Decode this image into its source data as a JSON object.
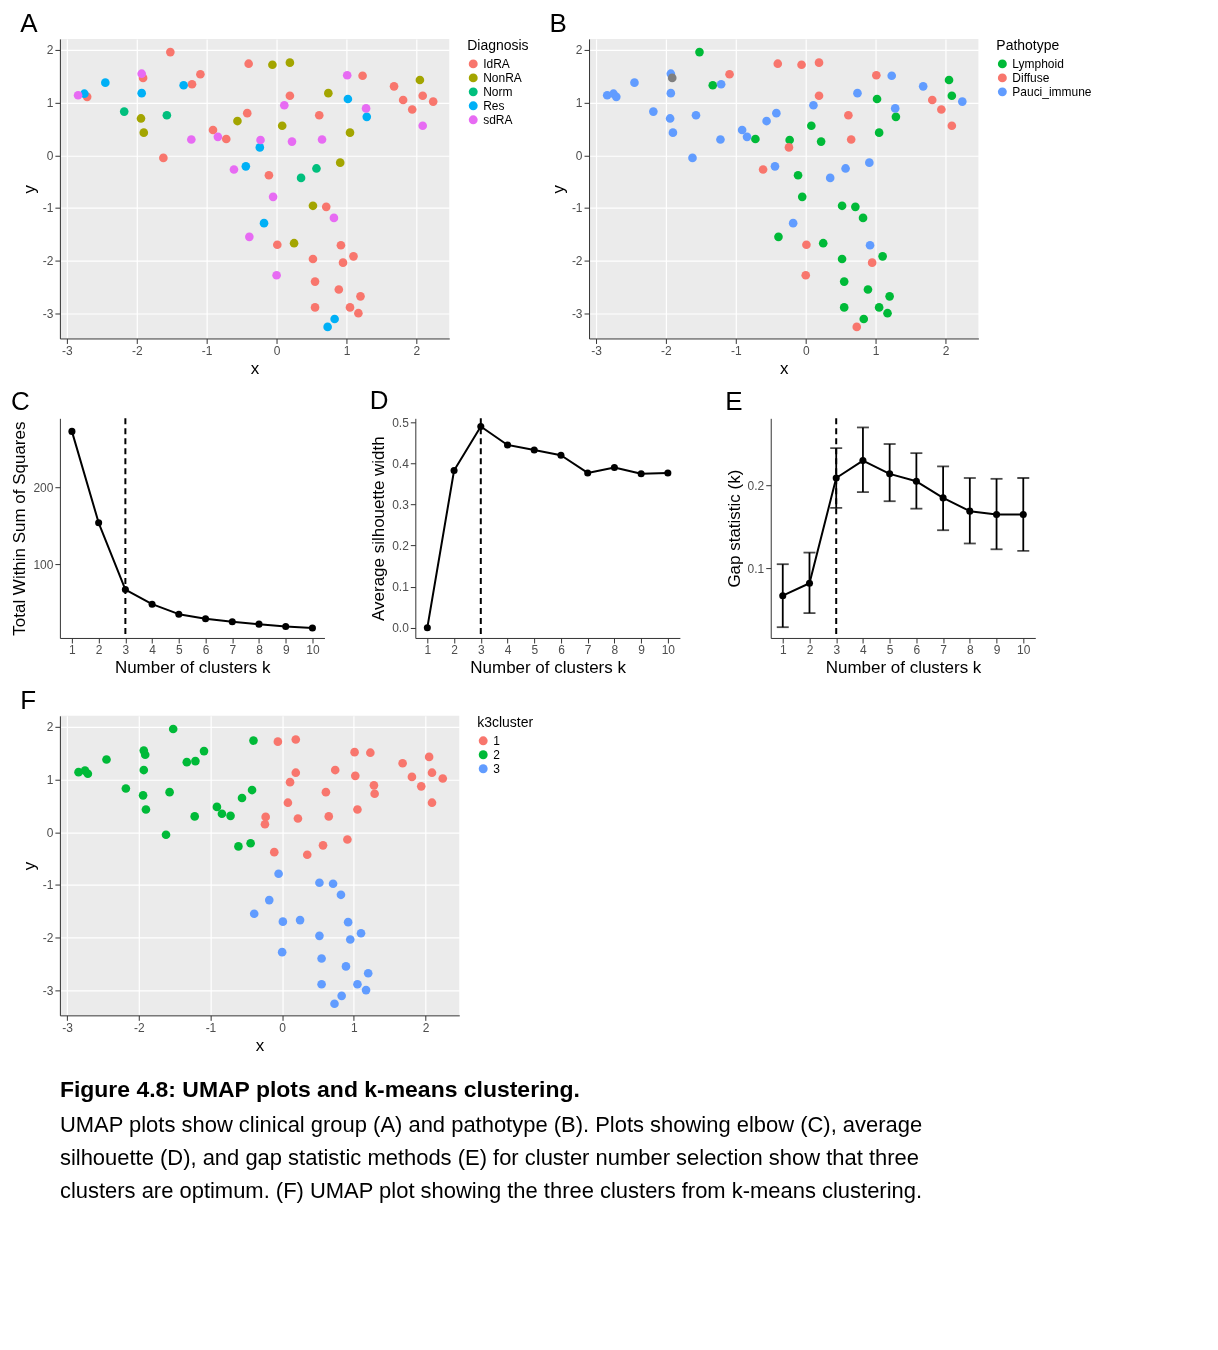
{
  "chart_data": [
    {
      "type": "scatter",
      "title": "A",
      "xlabel": "x",
      "ylabel": "y",
      "legend_title": "Diagnosis",
      "legend": "right",
      "grid": true,
      "marker": "circle",
      "xlim": [
        -3.1,
        2.47
      ],
      "ylim": [
        -3.48,
        2.21
      ],
      "xticks": [
        -3,
        -2,
        -1,
        0,
        1,
        2
      ],
      "yticks": [
        -3,
        -2,
        -1,
        0,
        1,
        2
      ],
      "series": [
        {
          "name": "IdRA",
          "color": "#f8766d",
          "x": [
            -1.52,
            -0.4,
            -1.91,
            -1.09,
            -1.21,
            -2.71,
            -1.62,
            -0.91,
            -0.72,
            -0.42,
            -0.11,
            0.01,
            0.19,
            0.61,
            0.71,
            0.92,
            1.1,
            0.95,
            0.52,
            0.55,
            0.89,
            1.2,
            0.55,
            1.05,
            1.17,
            1.23,
            1.68,
            1.81,
            1.94,
            2.09,
            2.24
          ],
          "values": [
            1.96,
            1.74,
            1.47,
            1.54,
            1.35,
            1.11,
            -0.05,
            0.48,
            0.31,
            0.8,
            -0.38,
            -1.7,
            1.13,
            0.76,
            -0.98,
            -1.71,
            -1.92,
            -2.04,
            -1.97,
            -2.4,
            -2.55,
            -2.68,
            -2.89,
            -2.89,
            -3.0,
            1.51,
            1.31,
            1.05,
            0.87,
            1.13,
            1.02
          ]
        },
        {
          "name": "NonRA",
          "color": "#a3a500",
          "x": [
            -0.06,
            0.19,
            -1.94,
            -1.9,
            -0.56,
            0.25,
            0.08,
            0.74,
            0.91,
            0.52,
            1.05,
            2.05
          ],
          "values": [
            1.72,
            1.76,
            0.7,
            0.43,
            0.65,
            -1.67,
            0.56,
            1.18,
            -0.14,
            -0.96,
            0.43,
            1.43
          ]
        },
        {
          "name": "Norm",
          "color": "#00bf7d",
          "x": [
            -2.18,
            -1.57,
            0.35,
            0.57
          ],
          "values": [
            0.83,
            0.76,
            -0.43,
            -0.25
          ]
        },
        {
          "name": "Res",
          "color": "#00b0f6",
          "x": [
            -2.45,
            -1.33,
            -2.75,
            -1.93,
            -0.24,
            -0.44,
            -0.18,
            0.83,
            0.73,
            1.02,
            1.29
          ],
          "values": [
            1.38,
            1.33,
            1.17,
            1.18,
            0.15,
            -0.21,
            -1.29,
            -3.11,
            -3.26,
            1.07,
            0.73
          ]
        },
        {
          "name": "sdRA",
          "color": "#e76bf3",
          "x": [
            -1.93,
            -2.84,
            -1.22,
            -0.84,
            -0.23,
            -0.61,
            -0.05,
            -0.39,
            0.0,
            0.11,
            0.22,
            0.65,
            0.82,
            1.01,
            1.28,
            2.09
          ],
          "values": [
            1.55,
            1.14,
            0.3,
            0.35,
            0.29,
            -0.27,
            -0.79,
            -1.55,
            -2.28,
            0.95,
            0.26,
            0.3,
            -1.19,
            1.52,
            0.89,
            0.56
          ]
        }
      ]
    },
    {
      "type": "scatter",
      "title": "B",
      "xlabel": "x",
      "ylabel": "y",
      "legend_title": "Pathotype",
      "legend": "right",
      "grid": true,
      "marker": "circle",
      "xlim": [
        -3.1,
        2.47
      ],
      "ylim": [
        -3.48,
        2.21
      ],
      "xticks": [
        -3,
        -2,
        -1,
        0,
        1,
        2
      ],
      "yticks": [
        -3,
        -2,
        -1,
        0,
        1,
        2
      ],
      "series": [
        {
          "name": "Lymphoid",
          "color": "#00ba38",
          "x": [
            -1.52,
            -1.33,
            -0.72,
            -0.23,
            -0.11,
            -0.05,
            -0.39,
            0.25,
            0.08,
            0.22,
            0.52,
            0.71,
            0.82,
            1.1,
            0.52,
            0.55,
            0.89,
            1.2,
            0.55,
            1.05,
            1.17,
            0.83,
            1.02,
            1.05,
            1.29,
            2.05,
            2.09
          ],
          "values": [
            1.96,
            1.33,
            0.31,
            0.29,
            -0.38,
            -0.79,
            -1.55,
            -1.67,
            0.56,
            0.26,
            -0.96,
            -0.98,
            -1.19,
            -1.92,
            -1.97,
            -2.4,
            -2.55,
            -2.68,
            -2.89,
            -2.89,
            -3.0,
            -3.11,
            1.07,
            0.43,
            0.73,
            1.43,
            1.13
          ]
        },
        {
          "name": "Diffuse",
          "color": "#f8766d",
          "x": [
            -0.4,
            -0.06,
            0.19,
            -1.09,
            -0.24,
            -0.61,
            0.01,
            0.0,
            0.19,
            0.61,
            0.65,
            0.95,
            0.73,
            1.01,
            1.81,
            1.94,
            2.09
          ],
          "values": [
            1.74,
            1.72,
            1.76,
            1.54,
            0.15,
            -0.27,
            -1.7,
            -2.28,
            1.13,
            0.76,
            0.3,
            -2.04,
            -3.26,
            1.52,
            1.05,
            0.87,
            0.56
          ]
        },
        {
          "name": "Pauci_immune",
          "color": "#619cff",
          "x": [
            -1.93,
            -2.45,
            -1.21,
            -2.84,
            -2.75,
            -2.71,
            -1.93,
            -2.18,
            -1.57,
            -1.94,
            -1.9,
            -1.62,
            -1.22,
            -0.91,
            -0.84,
            -0.56,
            -0.42,
            -0.44,
            -0.18,
            0.11,
            0.35,
            0.57,
            0.74,
            0.91,
            0.92,
            1.23,
            1.28,
            1.68,
            2.24
          ],
          "values": [
            1.55,
            1.38,
            1.35,
            1.14,
            1.17,
            1.11,
            1.18,
            0.83,
            0.76,
            0.7,
            0.43,
            -0.05,
            0.3,
            0.48,
            0.35,
            0.65,
            0.8,
            -0.21,
            -1.29,
            0.95,
            -0.43,
            -0.25,
            1.18,
            -0.14,
            -1.71,
            1.51,
            0.89,
            1.31,
            1.02
          ]
        },
        {
          "color": "#7f7f7f",
          "x": [
            -1.91
          ],
          "values": [
            1.47
          ]
        }
      ]
    },
    {
      "type": "line",
      "title": "C",
      "xlabel": "Number of clusters k",
      "ylabel": "Total Within Sum of Squares",
      "marker": "circle",
      "line_style": "solid",
      "x": [
        1,
        2,
        3,
        4,
        5,
        6,
        7,
        8,
        9,
        10
      ],
      "xlim": [
        0.55,
        10.45
      ],
      "xticks": [
        1,
        2,
        3,
        4,
        5,
        6,
        7,
        8,
        9,
        10
      ],
      "ylim": [
        4,
        290
      ],
      "yticks": [
        100,
        200
      ],
      "series": [
        {
          "color": "#000000",
          "values": [
            273,
            154,
            67,
            48,
            35,
            29,
            25,
            22,
            19,
            17
          ]
        }
      ],
      "ref_lines": [
        {
          "axis": "x",
          "value": 3,
          "color": "#000000",
          "line_style": "dashed"
        }
      ]
    },
    {
      "type": "line",
      "title": "D",
      "xlabel": "Number of clusters k",
      "ylabel": "Average silhouette width",
      "marker": "circle",
      "line_style": "solid",
      "x": [
        1,
        2,
        3,
        4,
        5,
        6,
        7,
        8,
        9,
        10
      ],
      "xlim": [
        0.55,
        10.45
      ],
      "xticks": [
        1,
        2,
        3,
        4,
        5,
        6,
        7,
        8,
        9,
        10
      ],
      "ylim": [
        -0.025,
        0.51
      ],
      "yticks": [
        {
          "value": 0,
          "label": "0.0"
        },
        0.1,
        0.2,
        0.3,
        0.4,
        0.5
      ],
      "series": [
        {
          "color": "#000000",
          "values": [
            0.0,
            0.383,
            0.49,
            0.445,
            0.433,
            0.42,
            0.377,
            0.39,
            0.375,
            0.377
          ]
        }
      ],
      "ref_lines": [
        {
          "axis": "x",
          "value": 3,
          "color": "#000000",
          "line_style": "dashed"
        }
      ]
    },
    {
      "type": "line",
      "title": "E",
      "xlabel": "Number of clusters k",
      "ylabel": "Gap statistic (k)",
      "marker": "circle",
      "line_style": "solid",
      "x": [
        1,
        2,
        3,
        4,
        5,
        6,
        7,
        8,
        9,
        10
      ],
      "xlim": [
        0.55,
        10.45
      ],
      "xticks": [
        1,
        2,
        3,
        4,
        5,
        6,
        7,
        8,
        9,
        10
      ],
      "ylim": [
        0.016,
        0.281
      ],
      "yticks": [
        0.1,
        0.2
      ],
      "series": [
        {
          "color": "#000000",
          "values": [
            0.067,
            0.082,
            0.209,
            0.23,
            0.214,
            0.205,
            0.185,
            0.169,
            0.165,
            0.165
          ],
          "errors": [
            [
              0.029,
              0.105
            ],
            [
              0.046,
              0.119
            ],
            [
              0.173,
              0.245
            ],
            [
              0.192,
              0.27
            ],
            [
              0.181,
              0.25
            ],
            [
              0.172,
              0.239
            ],
            [
              0.146,
              0.223
            ],
            [
              0.13,
              0.209
            ],
            [
              0.123,
              0.208
            ],
            [
              0.121,
              0.209
            ]
          ]
        }
      ],
      "ref_lines": [
        {
          "axis": "x",
          "value": 3,
          "color": "#000000",
          "line_style": "dashed"
        }
      ]
    },
    {
      "type": "scatter",
      "title": "F",
      "xlabel": "x",
      "ylabel": "y",
      "legend_title": "k3cluster",
      "legend": "right",
      "grid": true,
      "marker": "circle",
      "xlim": [
        -3.1,
        2.47
      ],
      "ylim": [
        -3.48,
        2.21
      ],
      "xticks": [
        -3,
        -2,
        -1,
        0,
        1,
        2
      ],
      "yticks": [
        -3,
        -2,
        -1,
        0,
        1,
        2
      ],
      "series": [
        {
          "name": "1",
          "color": "#f8766d",
          "x": [
            -0.06,
            0.19,
            -0.23,
            -0.24,
            -0.11,
            0.19,
            0.11,
            0.08,
            0.22,
            0.35,
            0.57,
            0.61,
            0.65,
            0.74,
            0.91,
            1.01,
            1.23,
            1.02,
            1.05,
            1.28,
            1.29,
            1.68,
            1.81,
            1.94,
            2.05,
            2.09,
            2.24,
            2.09
          ],
          "values": [
            1.72,
            1.76,
            0.29,
            0.15,
            -0.38,
            1.13,
            0.95,
            0.56,
            0.26,
            -0.43,
            -0.25,
            0.76,
            0.3,
            1.18,
            -0.14,
            1.52,
            1.51,
            1.07,
            0.43,
            0.89,
            0.73,
            1.31,
            1.05,
            0.87,
            1.43,
            1.13,
            1.02,
            0.56
          ]
        },
        {
          "name": "2",
          "color": "#00ba38",
          "x": [
            -1.52,
            -0.4,
            -1.93,
            -1.91,
            -1.09,
            -2.45,
            -1.33,
            -1.21,
            -2.84,
            -2.75,
            -2.71,
            -1.93,
            -2.18,
            -1.57,
            -1.94,
            -1.9,
            -1.62,
            -1.22,
            -0.91,
            -0.84,
            -0.72,
            -0.56,
            -0.42,
            -0.61,
            -0.44
          ],
          "values": [
            1.96,
            1.74,
            1.55,
            1.47,
            1.54,
            1.38,
            1.33,
            1.35,
            1.14,
            1.17,
            1.11,
            1.18,
            0.83,
            0.76,
            0.7,
            0.43,
            -0.05,
            0.3,
            0.48,
            0.35,
            0.31,
            0.65,
            0.8,
            -0.27,
            -0.21
          ]
        },
        {
          "name": "3",
          "color": "#619cff",
          "x": [
            -0.05,
            -0.18,
            -0.39,
            0.01,
            0.25,
            0.0,
            0.52,
            0.71,
            0.82,
            0.92,
            1.1,
            0.95,
            0.52,
            0.55,
            0.89,
            1.2,
            0.55,
            1.05,
            1.17,
            0.83,
            0.73
          ],
          "values": [
            -0.79,
            -1.29,
            -1.55,
            -1.7,
            -1.67,
            -2.28,
            -0.96,
            -0.98,
            -1.19,
            -1.71,
            -1.92,
            -2.04,
            -1.97,
            -2.4,
            -2.55,
            -2.68,
            -2.89,
            -2.89,
            -3.0,
            -3.11,
            -3.26
          ]
        }
      ]
    },
    {
      "type": "other",
      "annotations": [
        "Figure 4.8: UMAP plots and k-means clustering.",
        "UMAP plots show clinical group (A) and pathotype (B). Plots showing elbow (C), average silhouette (D), and gap statistic methods (E) for cluster number selection show that three clusters are optimum. (F) UMAP plot showing the three clusters from k-means clustering."
      ]
    }
  ]
}
